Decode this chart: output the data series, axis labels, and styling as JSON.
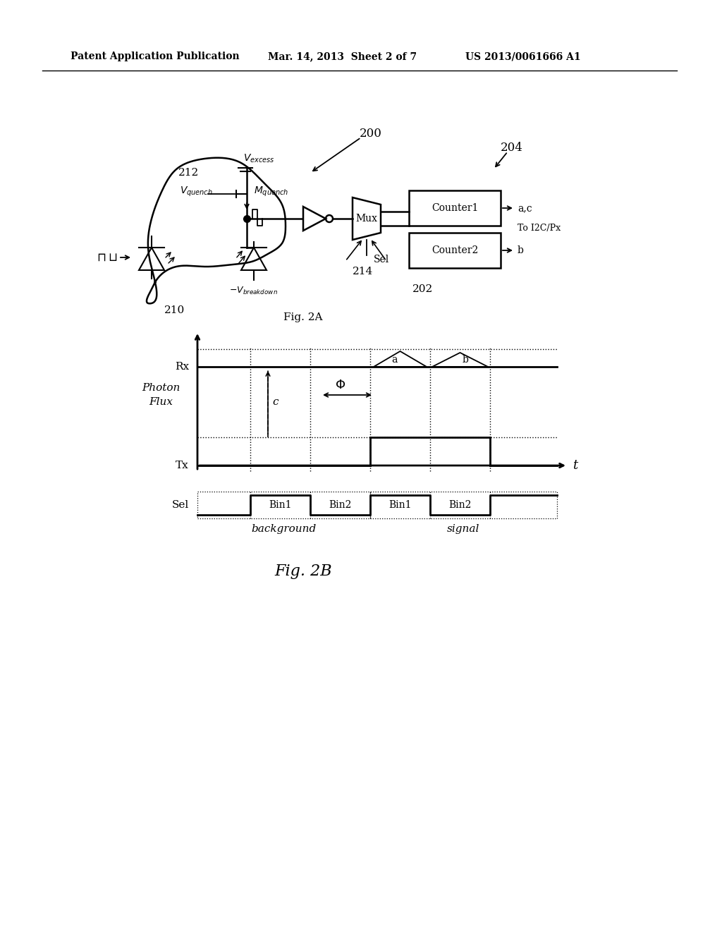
{
  "title_left": "Patent Application Publication",
  "title_mid": "Mar. 14, 2013  Sheet 2 of 7",
  "title_right": "US 2013/0061666 A1",
  "fig2a_label": "Fig. 2A",
  "fig2b_label": "Fig. 2B",
  "bg_color": "#ffffff",
  "line_color": "#000000"
}
